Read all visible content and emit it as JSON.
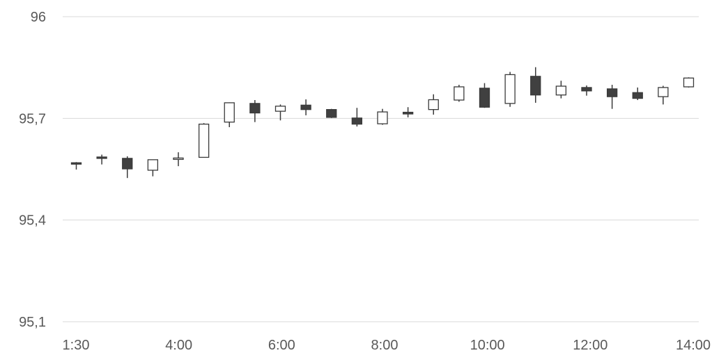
{
  "chart_data": {
    "type": "candlestick",
    "y_tick_labels": [
      "96",
      "95,7",
      "95,4",
      "95,1"
    ],
    "y_ticks": [
      96,
      95.7,
      95.4,
      95.1
    ],
    "ylim": [
      95.1,
      96
    ],
    "x_tick_labels": [
      "1:30",
      "4:00",
      "6:00",
      "8:00",
      "10:00",
      "12:00",
      "14:00"
    ],
    "grid": "horizontal",
    "colors": {
      "up_fill": "#ffffff",
      "down_fill": "#404040",
      "line": "#3a3a3a",
      "grid": "#d9d9d9",
      "text": "#595959"
    },
    "candles": [
      {
        "open": 95.569,
        "high": 95.571,
        "low": 95.549,
        "close": 95.567
      },
      {
        "open": 95.586,
        "high": 95.593,
        "low": 95.564,
        "close": 95.584
      },
      {
        "open": 95.582,
        "high": 95.588,
        "low": 95.524,
        "close": 95.551
      },
      {
        "open": 95.547,
        "high": 95.578,
        "low": 95.529,
        "close": 95.578
      },
      {
        "open": 95.581,
        "high": 95.6,
        "low": 95.559,
        "close": 95.583
      },
      {
        "open": 95.585,
        "high": 95.686,
        "low": 95.584,
        "close": 95.683
      },
      {
        "open": 95.689,
        "high": 95.747,
        "low": 95.674,
        "close": 95.746
      },
      {
        "open": 95.744,
        "high": 95.754,
        "low": 95.689,
        "close": 95.716
      },
      {
        "open": 95.721,
        "high": 95.741,
        "low": 95.694,
        "close": 95.736
      },
      {
        "open": 95.739,
        "high": 95.756,
        "low": 95.709,
        "close": 95.726
      },
      {
        "open": 95.726,
        "high": 95.728,
        "low": 95.701,
        "close": 95.703
      },
      {
        "open": 95.701,
        "high": 95.731,
        "low": 95.676,
        "close": 95.683
      },
      {
        "open": 95.684,
        "high": 95.728,
        "low": 95.681,
        "close": 95.719
      },
      {
        "open": 95.718,
        "high": 95.733,
        "low": 95.703,
        "close": 95.713
      },
      {
        "open": 95.726,
        "high": 95.771,
        "low": 95.711,
        "close": 95.755
      },
      {
        "open": 95.754,
        "high": 95.799,
        "low": 95.749,
        "close": 95.793
      },
      {
        "open": 95.789,
        "high": 95.804,
        "low": 95.731,
        "close": 95.733
      },
      {
        "open": 95.744,
        "high": 95.837,
        "low": 95.734,
        "close": 95.829
      },
      {
        "open": 95.824,
        "high": 95.851,
        "low": 95.746,
        "close": 95.769
      },
      {
        "open": 95.769,
        "high": 95.811,
        "low": 95.759,
        "close": 95.795
      },
      {
        "open": 95.791,
        "high": 95.797,
        "low": 95.767,
        "close": 95.781
      },
      {
        "open": 95.787,
        "high": 95.799,
        "low": 95.728,
        "close": 95.764
      },
      {
        "open": 95.776,
        "high": 95.791,
        "low": 95.754,
        "close": 95.759
      },
      {
        "open": 95.764,
        "high": 95.796,
        "low": 95.741,
        "close": 95.791
      },
      {
        "open": 95.793,
        "high": 95.821,
        "low": 95.791,
        "close": 95.819
      }
    ]
  }
}
